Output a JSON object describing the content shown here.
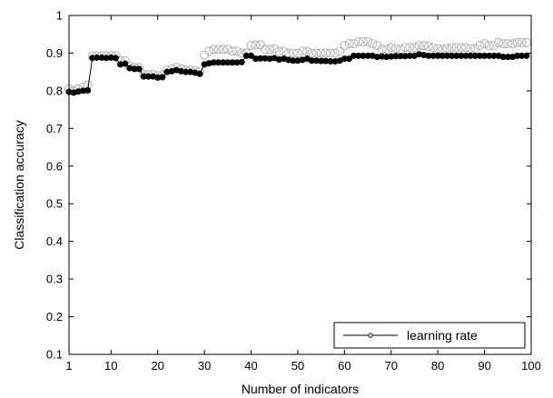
{
  "chart_data": {
    "type": "line",
    "xlabel": "Number of indicators",
    "ylabel": "Classification accuracy",
    "xlim": [
      1,
      100
    ],
    "ylim": [
      0.1,
      1.0
    ],
    "xticks": [
      1,
      10,
      20,
      30,
      40,
      50,
      60,
      70,
      80,
      90,
      100
    ],
    "yticks": [
      0.1,
      0.2,
      0.3,
      0.4,
      0.5,
      0.6,
      0.7,
      0.8,
      0.9,
      1.0
    ],
    "grid": false,
    "legend_position": "bottom-right",
    "series": [
      {
        "name": "learning rate",
        "color": "#000000",
        "marker": "filled-circle",
        "x": [
          1,
          2,
          3,
          4,
          5,
          6,
          7,
          8,
          9,
          10,
          11,
          12,
          13,
          14,
          15,
          16,
          17,
          18,
          19,
          20,
          21,
          22,
          23,
          24,
          25,
          26,
          27,
          28,
          29,
          30,
          31,
          32,
          33,
          34,
          35,
          36,
          37,
          38,
          39,
          40,
          41,
          42,
          43,
          44,
          45,
          46,
          47,
          48,
          49,
          50,
          51,
          52,
          53,
          54,
          55,
          56,
          57,
          58,
          59,
          60,
          61,
          62,
          63,
          64,
          65,
          66,
          67,
          68,
          69,
          70,
          71,
          72,
          73,
          74,
          75,
          76,
          77,
          78,
          79,
          80,
          81,
          82,
          83,
          84,
          85,
          86,
          87,
          88,
          89,
          90,
          91,
          92,
          93,
          94,
          95,
          96,
          97,
          98,
          99
        ],
        "y": [
          0.797,
          0.795,
          0.798,
          0.8,
          0.801,
          0.887,
          0.888,
          0.888,
          0.887,
          0.888,
          0.887,
          0.87,
          0.872,
          0.86,
          0.858,
          0.858,
          0.838,
          0.838,
          0.838,
          0.835,
          0.836,
          0.85,
          0.852,
          0.855,
          0.852,
          0.85,
          0.85,
          0.848,
          0.845,
          0.87,
          0.873,
          0.875,
          0.875,
          0.875,
          0.875,
          0.875,
          0.875,
          0.876,
          0.893,
          0.893,
          0.885,
          0.886,
          0.886,
          0.885,
          0.887,
          0.883,
          0.885,
          0.882,
          0.88,
          0.88,
          0.882,
          0.885,
          0.88,
          0.88,
          0.879,
          0.879,
          0.878,
          0.878,
          0.88,
          0.885,
          0.885,
          0.893,
          0.893,
          0.893,
          0.893,
          0.893,
          0.89,
          0.891,
          0.89,
          0.891,
          0.892,
          0.892,
          0.892,
          0.893,
          0.893,
          0.897,
          0.895,
          0.893,
          0.893,
          0.893,
          0.893,
          0.893,
          0.893,
          0.893,
          0.893,
          0.893,
          0.893,
          0.893,
          0.893,
          0.893,
          0.893,
          0.893,
          0.893,
          0.89,
          0.89,
          0.89,
          0.893,
          0.893,
          0.893
        ]
      },
      {
        "name": "",
        "color": "#b0b0b0",
        "marker": "open-circle",
        "x": [
          1,
          2,
          3,
          4,
          5,
          6,
          7,
          8,
          9,
          10,
          11,
          12,
          13,
          14,
          15,
          16,
          17,
          18,
          19,
          20,
          21,
          22,
          23,
          24,
          25,
          26,
          27,
          28,
          29,
          30,
          31,
          32,
          33,
          34,
          35,
          36,
          37,
          38,
          39,
          40,
          41,
          42,
          43,
          44,
          45,
          46,
          47,
          48,
          49,
          50,
          51,
          52,
          53,
          54,
          55,
          56,
          57,
          58,
          59,
          60,
          61,
          62,
          63,
          64,
          65,
          66,
          67,
          68,
          69,
          70,
          71,
          72,
          73,
          74,
          75,
          76,
          77,
          78,
          79,
          80,
          81,
          82,
          83,
          84,
          85,
          86,
          87,
          88,
          89,
          90,
          91,
          92,
          93,
          94,
          95,
          96,
          97,
          98,
          99
        ],
        "y": [
          0.805,
          0.8,
          0.805,
          0.81,
          0.815,
          0.893,
          0.893,
          0.893,
          0.893,
          0.893,
          0.893,
          0.88,
          0.88,
          0.865,
          0.862,
          0.862,
          0.843,
          0.843,
          0.843,
          0.84,
          0.842,
          0.855,
          0.858,
          0.862,
          0.858,
          0.855,
          0.855,
          0.853,
          0.85,
          0.895,
          0.905,
          0.91,
          0.91,
          0.91,
          0.91,
          0.905,
          0.905,
          0.9,
          0.9,
          0.92,
          0.922,
          0.922,
          0.91,
          0.91,
          0.912,
          0.905,
          0.905,
          0.9,
          0.9,
          0.9,
          0.905,
          0.905,
          0.9,
          0.9,
          0.9,
          0.9,
          0.9,
          0.9,
          0.905,
          0.92,
          0.925,
          0.925,
          0.93,
          0.93,
          0.93,
          0.925,
          0.92,
          0.91,
          0.91,
          0.915,
          0.912,
          0.91,
          0.915,
          0.915,
          0.915,
          0.92,
          0.92,
          0.918,
          0.915,
          0.912,
          0.91,
          0.912,
          0.915,
          0.915,
          0.915,
          0.915,
          0.912,
          0.912,
          0.92,
          0.925,
          0.92,
          0.92,
          0.928,
          0.925,
          0.925,
          0.925,
          0.928,
          0.928,
          0.928
        ]
      }
    ]
  }
}
